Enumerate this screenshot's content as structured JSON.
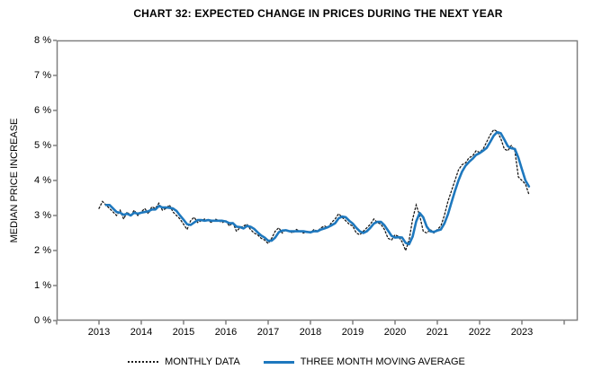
{
  "page": {
    "background": "#ffffff"
  },
  "colors": {
    "frame": "#808080",
    "tick": "#808080",
    "monthly_line": "#1a1a1a",
    "moving_average_line": "#1e78be",
    "text": "#000000"
  },
  "legend": {
    "monthly_label": "MONTHLY DATA",
    "moving_average_label": "THREE MONTH MOVING AVERAGE"
  },
  "chart_data": {
    "type": "line",
    "title": "CHART 32: EXPECTED CHANGE IN PRICES DURING THE NEXT YEAR",
    "xlabel": "",
    "ylabel": "MEDIAN PRICE INCREASE",
    "ylim": [
      0,
      8
    ],
    "y_tick_labels": [
      "0 %",
      "1 %",
      "2 %",
      "3 %",
      "4 %",
      "5 %",
      "6 %",
      "7 %",
      "8 %"
    ],
    "x_tick_labels": [
      "2013",
      "2014",
      "2015",
      "2016",
      "2017",
      "2018",
      "2019",
      "2020",
      "2021",
      "2022",
      "2023"
    ],
    "x_start_month": "2013-01",
    "x_end_month": "2023-03",
    "grid": false,
    "legend_position": "bottom",
    "series": [
      {
        "name": "MONTHLY DATA",
        "style": "dotted",
        "color": "#1a1a1a",
        "values": [
          3.2,
          3.4,
          3.3,
          3.2,
          3.1,
          3.0,
          3.15,
          2.9,
          3.1,
          3.0,
          3.15,
          3.0,
          3.1,
          3.2,
          3.05,
          3.25,
          3.2,
          3.35,
          3.15,
          3.2,
          3.3,
          3.1,
          3.0,
          2.9,
          2.75,
          2.6,
          2.85,
          2.95,
          2.8,
          2.85,
          2.9,
          2.85,
          2.8,
          2.9,
          2.85,
          2.8,
          2.85,
          2.7,
          2.8,
          2.55,
          2.65,
          2.7,
          2.75,
          2.6,
          2.5,
          2.45,
          2.35,
          2.3,
          2.2,
          2.35,
          2.55,
          2.65,
          2.5,
          2.6,
          2.55,
          2.5,
          2.6,
          2.55,
          2.5,
          2.55,
          2.5,
          2.6,
          2.55,
          2.65,
          2.7,
          2.65,
          2.8,
          2.9,
          3.05,
          2.95,
          2.85,
          2.75,
          2.7,
          2.5,
          2.45,
          2.55,
          2.65,
          2.75,
          2.9,
          2.8,
          2.75,
          2.6,
          2.35,
          2.3,
          2.45,
          2.4,
          2.25,
          2.0,
          2.3,
          2.9,
          3.3,
          3.0,
          2.55,
          2.5,
          2.6,
          2.5,
          2.6,
          2.7,
          3.0,
          3.4,
          3.7,
          4.0,
          4.3,
          4.45,
          4.5,
          4.65,
          4.7,
          4.85,
          4.8,
          4.9,
          5.1,
          5.3,
          5.45,
          5.4,
          5.2,
          4.9,
          4.85,
          5.0,
          4.85,
          4.1,
          4.0,
          3.9,
          3.6
        ]
      },
      {
        "name": "THREE MONTH MOVING AVERAGE",
        "style": "solid",
        "color": "#1e78be",
        "values": [
          null,
          null,
          3.3,
          3.3,
          3.2,
          3.1,
          3.08,
          3.02,
          3.05,
          3.0,
          3.08,
          3.05,
          3.08,
          3.1,
          3.12,
          3.17,
          3.17,
          3.27,
          3.23,
          3.23,
          3.22,
          3.2,
          3.13,
          3.0,
          2.88,
          2.75,
          2.73,
          2.8,
          2.87,
          2.87,
          2.85,
          2.87,
          2.85,
          2.85,
          2.85,
          2.85,
          2.83,
          2.78,
          2.78,
          2.68,
          2.67,
          2.63,
          2.7,
          2.68,
          2.62,
          2.52,
          2.43,
          2.37,
          2.28,
          2.28,
          2.37,
          2.52,
          2.57,
          2.58,
          2.55,
          2.55,
          2.55,
          2.55,
          2.55,
          2.53,
          2.52,
          2.55,
          2.55,
          2.6,
          2.63,
          2.67,
          2.72,
          2.78,
          2.92,
          2.97,
          2.95,
          2.85,
          2.77,
          2.65,
          2.55,
          2.5,
          2.55,
          2.65,
          2.77,
          2.82,
          2.82,
          2.72,
          2.57,
          2.42,
          2.37,
          2.38,
          2.37,
          2.22,
          2.18,
          2.4,
          2.83,
          3.07,
          2.95,
          2.68,
          2.55,
          2.53,
          2.57,
          2.6,
          2.77,
          3.03,
          3.37,
          3.7,
          4.0,
          4.25,
          4.42,
          4.53,
          4.62,
          4.73,
          4.78,
          4.85,
          4.93,
          5.1,
          5.28,
          5.38,
          5.35,
          5.17,
          4.98,
          4.92,
          4.9,
          4.65,
          4.32,
          4.0,
          3.83
        ]
      }
    ]
  }
}
